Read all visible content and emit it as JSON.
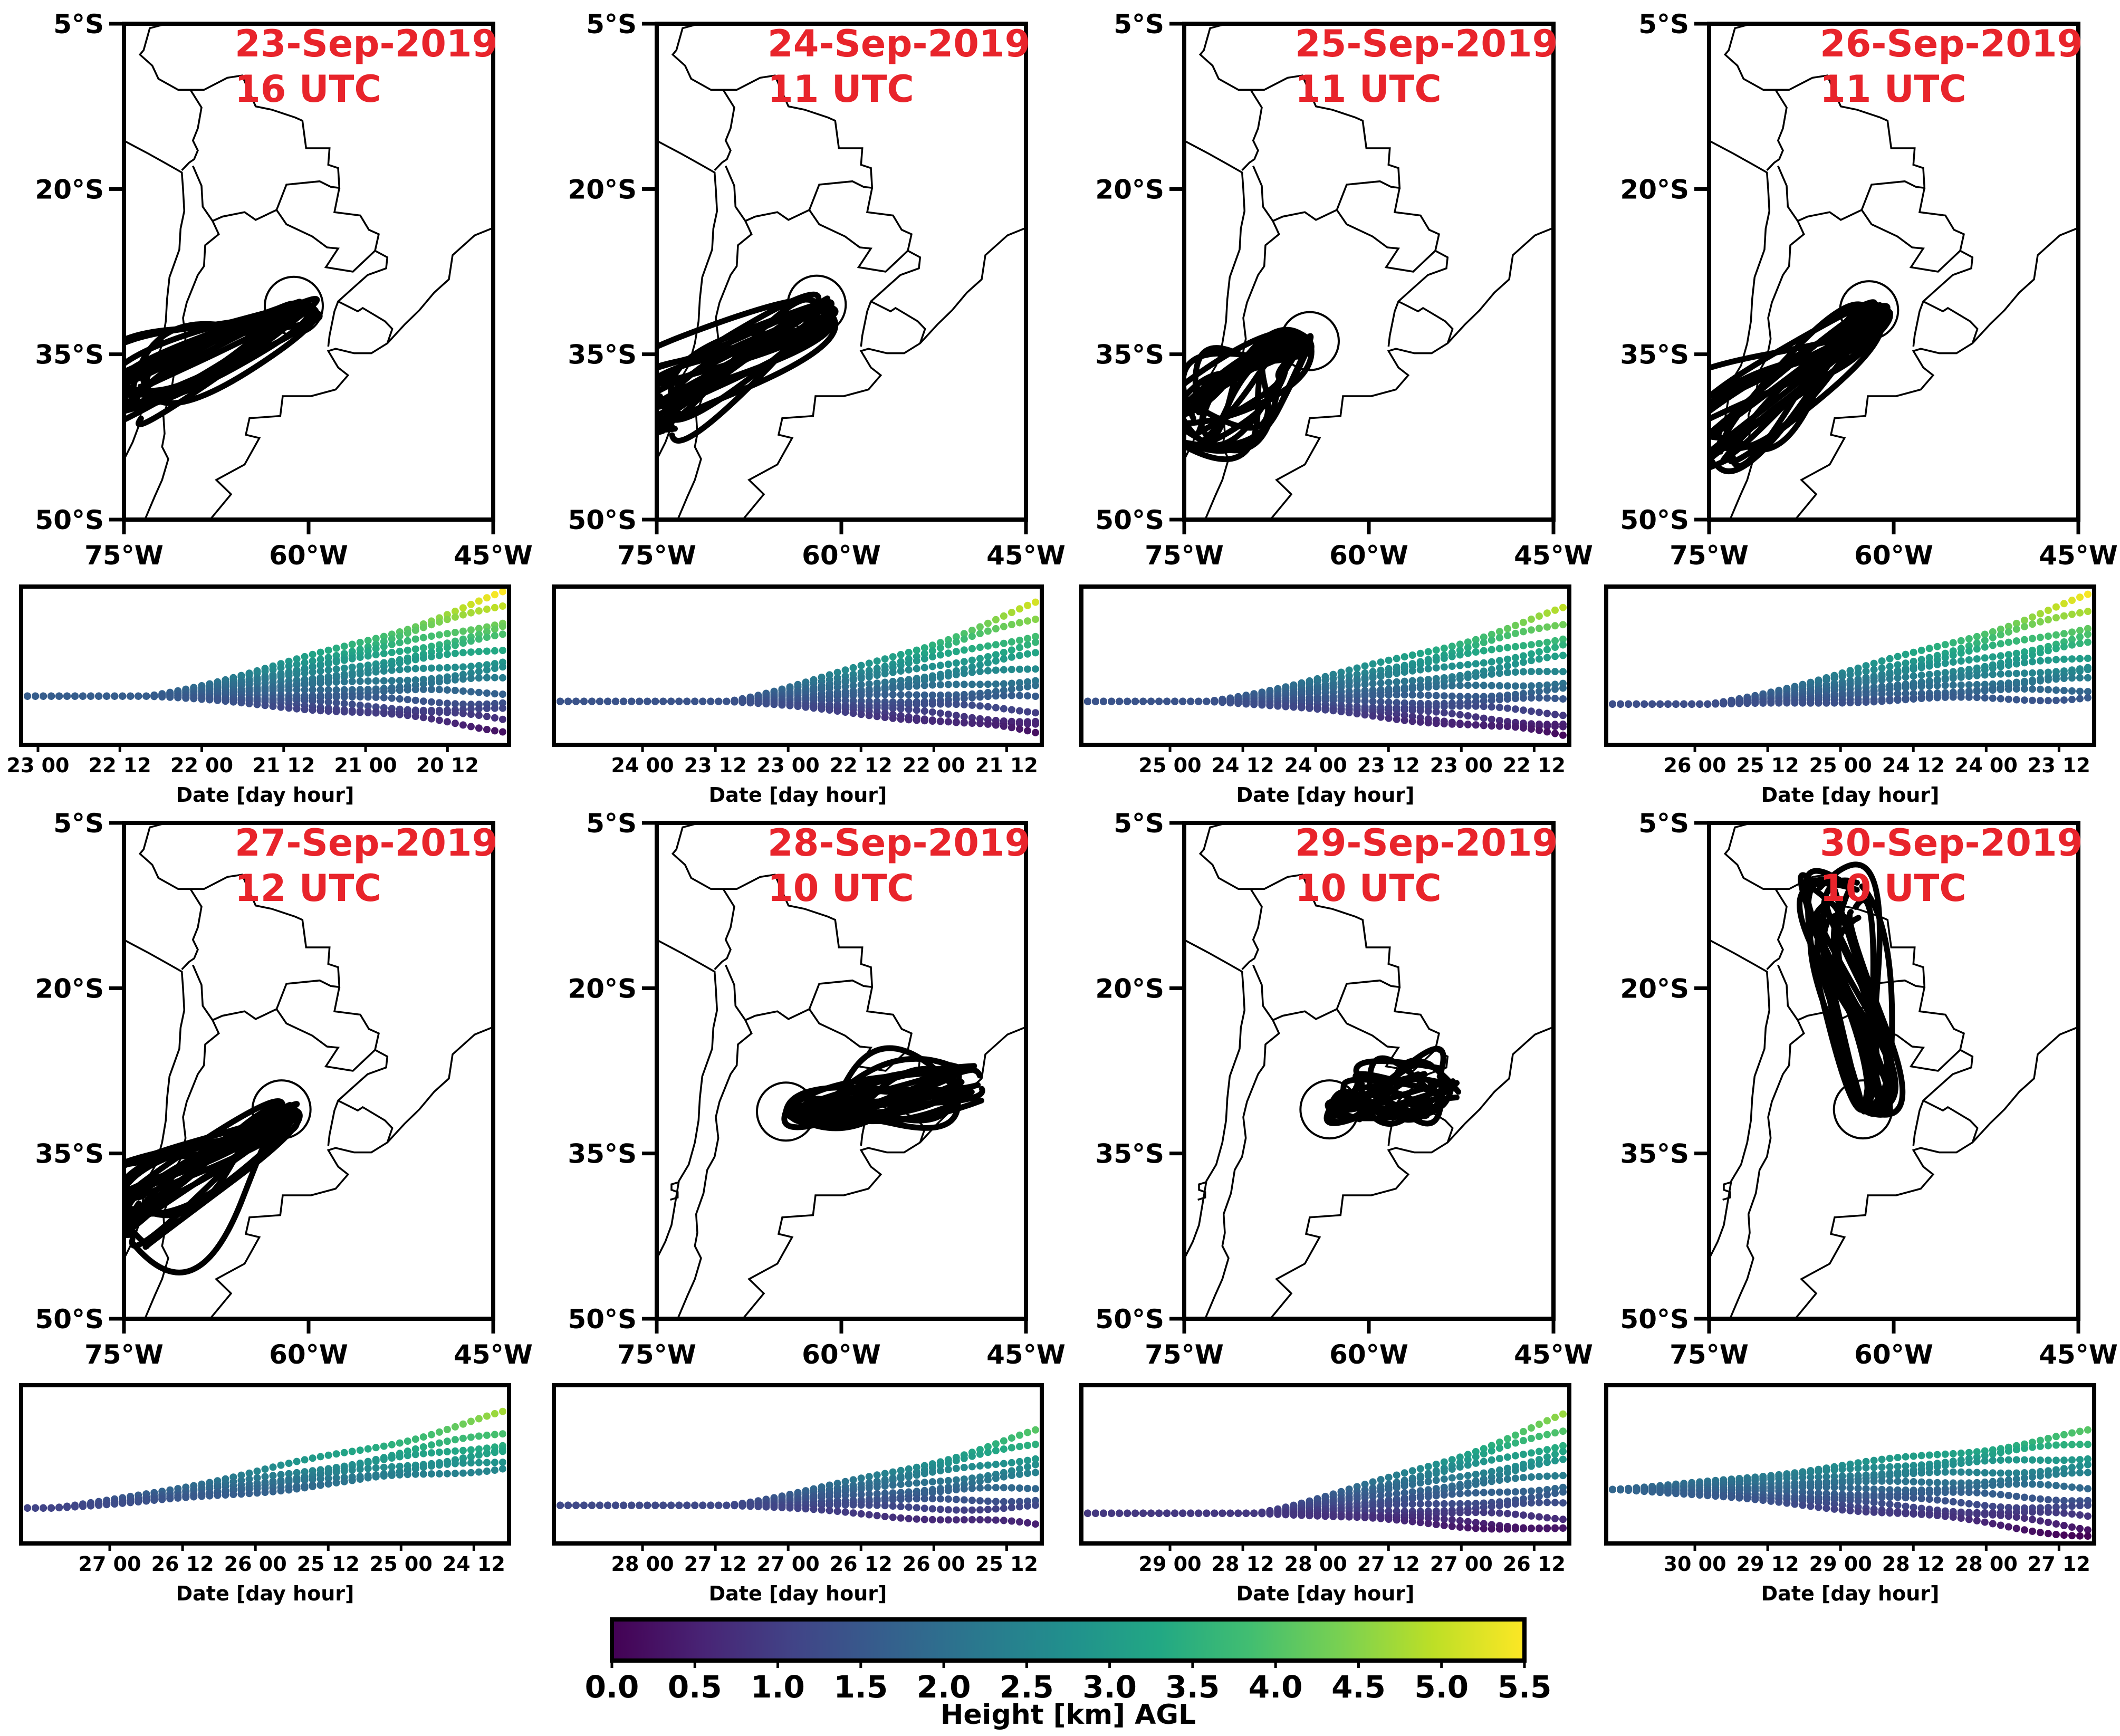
{
  "chart_data": [
    {
      "type": "trajectory-map",
      "date": "23-Sep-2019",
      "time": "16 UTC",
      "lat_ticks": [
        "5°S",
        "20°S",
        "35°S",
        "50°S"
      ],
      "lon_ticks": [
        "75°W",
        "60°W",
        "45°W"
      ],
      "xlim": [
        -75,
        -45
      ],
      "ylim": [
        -50,
        -5
      ],
      "source": {
        "lon": -61.2,
        "lat": -30.6
      },
      "endpoint": {
        "lon": -75,
        "lat": -39
      },
      "curl_direction": 1,
      "side_panel": {
        "type": "scatter",
        "xlabel": "Date [day hour]",
        "tick_labels": [
          "23 00",
          "22 12",
          "22 00",
          "21 12",
          "21 00",
          "20 12"
        ],
        "first_tick_offset": 0,
        "ylim": [
          0,
          5.5
        ],
        "start_height": 1.6,
        "final_heights": [
          5.4,
          5.0,
          4.5,
          4.2,
          3.8,
          3.4,
          3.0,
          2.6,
          2.2,
          1.8,
          1.4,
          1.0,
          0.7,
          0.4
        ],
        "rise_start": 0.25
      }
    },
    {
      "type": "trajectory-map",
      "date": "24-Sep-2019",
      "time": "11 UTC",
      "lat_ticks": [
        "5°S",
        "20°S",
        "35°S",
        "50°S"
      ],
      "lon_ticks": [
        "75°W",
        "60°W",
        "45°W"
      ],
      "xlim": [
        -75,
        -45
      ],
      "ylim": [
        -50,
        -5
      ],
      "source": {
        "lon": -62.0,
        "lat": -30.5
      },
      "endpoint": {
        "lon": -75,
        "lat": -40.5
      },
      "curl_direction": 1,
      "side_panel": {
        "type": "scatter",
        "xlabel": "Date [day hour]",
        "tick_labels": [
          "24 00",
          "23 12",
          "23 00",
          "22 12",
          "22 00",
          "21 12"
        ],
        "first_tick_offset": 1,
        "ylim": [
          0,
          5.5
        ],
        "start_height": 1.4,
        "final_heights": [
          5.0,
          4.5,
          4.0,
          3.6,
          3.1,
          2.7,
          2.3,
          1.9,
          1.5,
          1.1,
          0.7,
          0.4,
          0.2
        ],
        "rise_start": 0.35
      }
    },
    {
      "type": "trajectory-map",
      "date": "25-Sep-2019",
      "time": "11 UTC",
      "lat_ticks": [
        "5°S",
        "20°S",
        "35°S",
        "50°S"
      ],
      "lon_ticks": [
        "75°W",
        "60°W",
        "45°W"
      ],
      "xlim": [
        -75,
        -45
      ],
      "ylim": [
        -50,
        -5
      ],
      "source": {
        "lon": -64.8,
        "lat": -33.8
      },
      "endpoint": {
        "lon": -75,
        "lat": -41.5
      },
      "curl_direction": -1,
      "side_panel": {
        "type": "scatter",
        "xlabel": "Date [day hour]",
        "tick_labels": [
          "25 00",
          "24 12",
          "24 00",
          "23 12",
          "23 00",
          "22 12"
        ],
        "first_tick_offset": 1,
        "ylim": [
          0,
          5.5
        ],
        "start_height": 1.4,
        "final_heights": [
          4.8,
          4.3,
          3.9,
          3.5,
          3.0,
          2.6,
          2.2,
          1.8,
          1.4,
          1.0,
          0.6,
          0.3,
          0.1
        ],
        "rise_start": 0.25
      }
    },
    {
      "type": "trajectory-map",
      "date": "26-Sep-2019",
      "time": "11 UTC",
      "lat_ticks": [
        "5°S",
        "20°S",
        "35°S",
        "50°S"
      ],
      "lon_ticks": [
        "75°W",
        "60°W",
        "45°W"
      ],
      "xlim": [
        -75,
        -45
      ],
      "ylim": [
        -50,
        -5
      ],
      "source": {
        "lon": -62.0,
        "lat": -31.0
      },
      "endpoint": {
        "lon": -75,
        "lat": -43.5
      },
      "curl_direction": 1,
      "side_panel": {
        "type": "scatter",
        "xlabel": "Date [day hour]",
        "tick_labels": [
          "26 00",
          "25 12",
          "25 00",
          "24 12",
          "24 00",
          "23 12"
        ],
        "first_tick_offset": 1,
        "ylim": [
          0,
          5.5
        ],
        "start_height": 1.3,
        "final_heights": [
          5.3,
          4.8,
          4.3,
          3.9,
          3.5,
          3.1,
          2.8,
          2.5,
          2.2,
          1.9,
          1.6
        ],
        "rise_start": 0.2
      }
    },
    {
      "type": "trajectory-map",
      "date": "27-Sep-2019",
      "time": "12 UTC",
      "lat_ticks": [
        "5°S",
        "20°S",
        "35°S",
        "50°S"
      ],
      "lon_ticks": [
        "75°W",
        "60°W",
        "45°W"
      ],
      "xlim": [
        -75,
        -45
      ],
      "ylim": [
        -50,
        -5
      ],
      "source": {
        "lon": -62.2,
        "lat": -31.0
      },
      "endpoint": {
        "lon": -75,
        "lat": -41.5
      },
      "curl_direction": 1,
      "side_panel": {
        "type": "scatter",
        "xlabel": "Date [day hour]",
        "tick_labels": [
          "27 00",
          "26 12",
          "26 00",
          "25 12",
          "25 00",
          "24 12"
        ],
        "first_tick_offset": 1,
        "ylim": [
          0,
          5.5
        ],
        "start_height": 1.1,
        "final_heights": [
          4.6,
          3.9,
          3.6,
          3.3,
          3.1,
          2.9,
          2.7
        ],
        "rise_start": 0.05
      }
    },
    {
      "type": "trajectory-map",
      "date": "28-Sep-2019",
      "time": "10 UTC",
      "lat_ticks": [
        "5°S",
        "20°S",
        "35°S",
        "50°S"
      ],
      "lon_ticks": [
        "75°W",
        "60°W",
        "45°W"
      ],
      "xlim": [
        -75,
        -45
      ],
      "ylim": [
        -50,
        -5
      ],
      "source": {
        "lon": -64.5,
        "lat": -31.2
      },
      "endpoint": {
        "lon": -50.5,
        "lat": -28.5
      },
      "curl_direction": 1,
      "side_panel": {
        "type": "scatter",
        "xlabel": "Date [day hour]",
        "tick_labels": [
          "28 00",
          "27 12",
          "27 00",
          "26 12",
          "26 00",
          "25 12"
        ],
        "first_tick_offset": 1,
        "ylim": [
          0,
          5.5
        ],
        "start_height": 1.2,
        "final_heights": [
          3.9,
          3.5,
          3.1,
          2.7,
          2.3,
          1.9,
          1.5,
          1.1,
          0.4
        ],
        "rise_start": 0.35
      }
    },
    {
      "type": "trajectory-map",
      "date": "29-Sep-2019",
      "time": "10 UTC",
      "lat_ticks": [
        "5°S",
        "20°S",
        "35°S",
        "50°S"
      ],
      "lon_ticks": [
        "75°W",
        "60°W",
        "45°W"
      ],
      "xlim": [
        -75,
        -45
      ],
      "ylim": [
        -50,
        -5
      ],
      "source": {
        "lon": -63.2,
        "lat": -31.0
      },
      "endpoint": {
        "lon": -54.5,
        "lat": -29.0
      },
      "curl_direction": 1,
      "side_panel": {
        "type": "scatter",
        "xlabel": "Date [day hour]",
        "tick_labels": [
          "29 00",
          "28 12",
          "28 00",
          "27 12",
          "27 00",
          "26 12"
        ],
        "first_tick_offset": 1,
        "ylim": [
          0,
          5.5
        ],
        "start_height": 0.9,
        "final_heights": [
          4.5,
          4.0,
          3.6,
          3.2,
          2.8,
          2.4,
          2.0,
          1.6,
          1.2,
          0.8,
          0.4,
          0.2
        ],
        "rise_start": 0.35
      }
    },
    {
      "type": "trajectory-map",
      "date": "30-Sep-2019",
      "time": "10 UTC",
      "lat_ticks": [
        "5°S",
        "20°S",
        "35°S",
        "50°S"
      ],
      "lon_ticks": [
        "75°W",
        "60°W",
        "45°W"
      ],
      "xlim": [
        -75,
        -45
      ],
      "ylim": [
        -50,
        -5
      ],
      "source": {
        "lon": -62.5,
        "lat": -31.0
      },
      "endpoint": {
        "lon": -64.5,
        "lat": -12.0
      },
      "curl_direction": 1,
      "side_panel": {
        "type": "scatter",
        "xlabel": "Date [day hour]",
        "tick_labels": [
          "30 00",
          "29 12",
          "29 00",
          "28 12",
          "28 00",
          "27 12"
        ],
        "first_tick_offset": 1,
        "ylim": [
          0,
          5.5
        ],
        "start_height": 1.8,
        "final_heights": [
          3.9,
          3.5,
          3.1,
          2.7,
          2.3,
          1.9,
          1.5,
          1.1,
          0.7,
          0.4,
          0.1
        ],
        "rise_start": 0.0
      }
    }
  ],
  "colorbar": {
    "label": "Height [km] AGL",
    "ticks": [
      "0.0",
      "0.5",
      "1.0",
      "1.5",
      "2.0",
      "2.5",
      "3.0",
      "3.5",
      "4.0",
      "4.5",
      "5.0",
      "5.5"
    ],
    "range": [
      0,
      5.5
    ],
    "colormap": "viridis"
  },
  "colors": {
    "title_red": "#e8242b",
    "trajectory": "#000000"
  }
}
